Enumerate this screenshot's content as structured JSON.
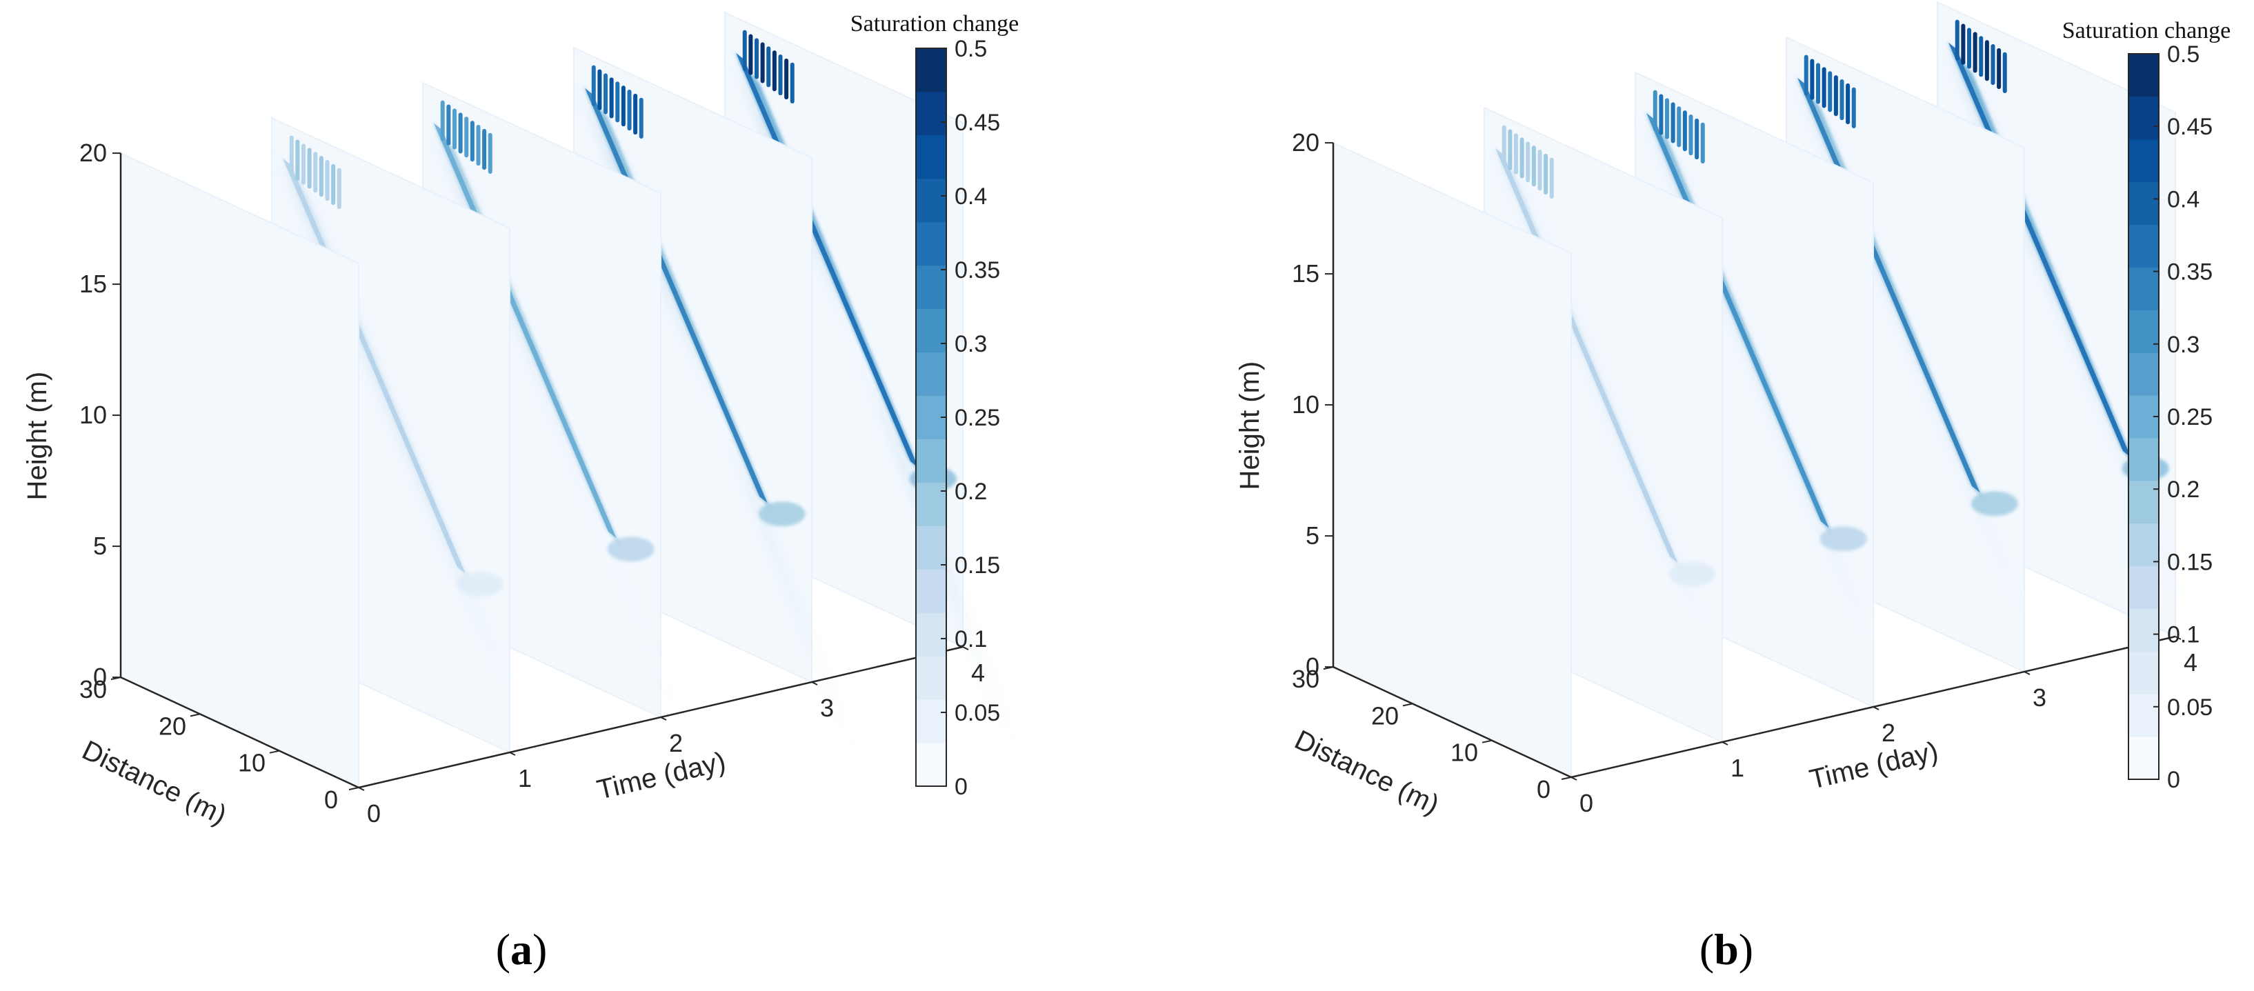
{
  "figure": {
    "panels": [
      {
        "label_open": "(",
        "label_letter": "a",
        "label_close": ")"
      },
      {
        "label_open": "(",
        "label_letter": "b",
        "label_close": ")"
      }
    ]
  },
  "colors": {
    "colormap": [
      "#f7fbff",
      "#e9f2fb",
      "#deebf7",
      "#d3e4f3",
      "#c6dbef",
      "#b5d3e9",
      "#9ecae1",
      "#84bcdb",
      "#6baed6",
      "#57a0ce",
      "#4292c6",
      "#3182bd",
      "#2171b5",
      "#1461a8",
      "#08519c",
      "#08408a",
      "#08306b"
    ],
    "axis": "#262626",
    "pane": "#f3f8fd",
    "pane_edge": "#e8f1fa"
  },
  "chart_data": [
    {
      "type": "3d-slice-contour",
      "panel": "a",
      "title": "",
      "colorbar_title": "Saturation change",
      "xlabel": "Time (day)",
      "ylabel": "Distance (m)",
      "zlabel": "Height (m)",
      "xlim": [
        0,
        4
      ],
      "ylim": [
        0,
        30
      ],
      "zlim": [
        0,
        20
      ],
      "clim": [
        0,
        0.5
      ],
      "x_ticks": [
        "0",
        "1",
        "2",
        "3",
        "4"
      ],
      "y_ticks": [
        "0",
        "10",
        "20",
        "30"
      ],
      "z_ticks": [
        "0",
        "5",
        "10",
        "15",
        "20"
      ],
      "colorbar_ticks": [
        "0",
        "0.05",
        "0.1",
        "0.15",
        "0.2",
        "0.25",
        "0.3",
        "0.35",
        "0.4",
        "0.45",
        "0.5"
      ],
      "slices": [
        {
          "time_day": 0,
          "max_saturation_change": 0.0
        },
        {
          "time_day": 1,
          "max_saturation_change": 0.2
        },
        {
          "time_day": 2,
          "max_saturation_change": 0.35
        },
        {
          "time_day": 3,
          "max_saturation_change": 0.45
        },
        {
          "time_day": 4,
          "max_saturation_change": 0.5
        }
      ]
    },
    {
      "type": "3d-slice-contour",
      "panel": "b",
      "title": "",
      "colorbar_title": "Saturation change",
      "xlabel": "Time (day)",
      "ylabel": "Distance (m)",
      "zlabel": "Height (m)",
      "xlim": [
        0,
        4
      ],
      "ylim": [
        0,
        30
      ],
      "zlim": [
        0,
        20
      ],
      "clim": [
        0,
        0.5
      ],
      "x_ticks": [
        "0",
        "1",
        "2",
        "3",
        "4"
      ],
      "y_ticks": [
        "0",
        "10",
        "20",
        "30"
      ],
      "z_ticks": [
        "0",
        "5",
        "10",
        "15",
        "20"
      ],
      "colorbar_ticks": [
        "0",
        "0.05",
        "0.1",
        "0.15",
        "0.2",
        "0.25",
        "0.3",
        "0.35",
        "0.4",
        "0.45",
        "0.5"
      ],
      "slices": [
        {
          "time_day": 0,
          "max_saturation_change": 0.0
        },
        {
          "time_day": 1,
          "max_saturation_change": 0.2
        },
        {
          "time_day": 2,
          "max_saturation_change": 0.4
        },
        {
          "time_day": 3,
          "max_saturation_change": 0.45
        },
        {
          "time_day": 4,
          "max_saturation_change": 0.5
        }
      ]
    }
  ]
}
